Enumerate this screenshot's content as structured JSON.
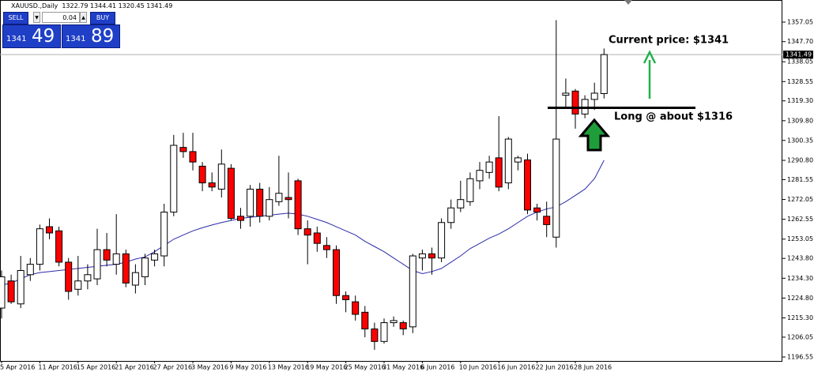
{
  "chart_data": {
    "type": "candlestick",
    "title": "XAUUSD.,Daily",
    "ohlc_label": "1322.79 1344.41 1320.45 1341.49",
    "categories": [
      "5 Apr 2016",
      null,
      null,
      null,
      "11 Apr 2016",
      null,
      null,
      null,
      "15 Apr 2016",
      null,
      null,
      null,
      "21 Apr 2016",
      null,
      null,
      null,
      "27 Apr 2016",
      null,
      null,
      null,
      "3 May 2016",
      null,
      null,
      null,
      "9 May 2016",
      null,
      null,
      null,
      "13 May 2016",
      null,
      null,
      null,
      "19 May 2016",
      null,
      null,
      null,
      "25 May 2016",
      null,
      null,
      null,
      "31 May 2016",
      null,
      null,
      null,
      "6 Jun 2016",
      null,
      null,
      null,
      "10 Jun 2016",
      null,
      null,
      null,
      "16 Jun 2016",
      null,
      null,
      null,
      "22 Jun 2016",
      null,
      null,
      null,
      "28 Jun 2016",
      null,
      null,
      null
    ],
    "open": [
      1220,
      1233,
      1222,
      1236,
      1241,
      1259,
      1257,
      1242,
      1229,
      1233,
      1234,
      1248,
      1241,
      1246,
      1231,
      1235,
      1243,
      1245,
      1266,
      1297,
      1295,
      1288,
      1280,
      1277,
      1287,
      1264,
      1264,
      1277,
      1264,
      1271,
      1273,
      1281,
      1258,
      1256,
      1250,
      1248,
      1226,
      1223,
      1218,
      1210,
      1204,
      1213,
      1213,
      1211,
      1244,
      1246,
      1244,
      1261,
      1268,
      1271,
      1281,
      1285,
      1292,
      1280,
      1290,
      1291,
      1268,
      1264,
      1254,
      1322,
      1324,
      1313,
      1320,
      1322.79
    ],
    "high": [
      1238,
      1236,
      1245,
      1244,
      1260,
      1263,
      1259,
      1244,
      1245,
      1241,
      1258,
      1256,
      1265,
      1248,
      1241,
      1246,
      1248,
      1270,
      1303,
      1304,
      1304,
      1290,
      1285,
      1296,
      1289,
      1268,
      1279,
      1280,
      1278,
      1293,
      1285,
      1282,
      1262,
      1259,
      1254,
      1250,
      1228,
      1226,
      1221,
      1213,
      1215,
      1216,
      1214,
      1246,
      1248,
      1249,
      1263,
      1272,
      1281,
      1285,
      1290,
      1293,
      1312,
      1302,
      1293,
      1294,
      1270,
      1271,
      1358,
      1330,
      1325,
      1322,
      1328,
      1344.41
    ],
    "low": [
      1215,
      1222,
      1220,
      1233,
      1238,
      1253,
      1240,
      1224,
      1226,
      1229,
      1231,
      1240,
      1236,
      1230,
      1227,
      1231,
      1240,
      1240,
      1264,
      1292,
      1286,
      1276,
      1276,
      1273,
      1262,
      1258,
      1259,
      1261,
      1262,
      1269,
      1263,
      1255,
      1241,
      1247,
      1244,
      1222,
      1218,
      1214,
      1206,
      1200,
      1203,
      1211,
      1207,
      1208,
      1238,
      1236,
      1242,
      1258,
      1266,
      1269,
      1277,
      1282,
      1276,
      1277,
      1286,
      1265,
      1262,
      1254,
      1249,
      1316,
      1306,
      1311,
      1315,
      1320.45
    ],
    "close": [
      1235,
      1223,
      1238,
      1241,
      1258,
      1256,
      1242,
      1228,
      1233,
      1236,
      1248,
      1243,
      1246,
      1232,
      1237,
      1244,
      1246,
      1266,
      1298,
      1295,
      1290,
      1280,
      1278,
      1289,
      1263,
      1262,
      1277,
      1264,
      1272,
      1275,
      1272,
      1258,
      1255,
      1251,
      1248,
      1226,
      1224,
      1217,
      1210,
      1204,
      1213,
      1214,
      1210,
      1245,
      1246,
      1244,
      1261,
      1268,
      1272,
      1282,
      1286,
      1290,
      1278,
      1301,
      1292,
      1267,
      1266,
      1260,
      1301,
      1323,
      1313,
      1320,
      1323,
      1341.49
    ],
    "up_color": "#ffffff",
    "down_color": "#ff0000",
    "moving_average": {
      "color": "#2b2ba8",
      "values": [
        1231,
        1232,
        1234,
        1236,
        1237,
        1237.5,
        1238,
        1238.5,
        1239,
        1239.5,
        1240,
        1240.5,
        1241,
        1242,
        1243.5,
        1244.5,
        1247,
        1250,
        1253,
        1255,
        1257,
        1258.5,
        1259.8,
        1261,
        1262,
        1263,
        1263.5,
        1264,
        1264.5,
        1265,
        1265.5,
        1265,
        1264,
        1262.5,
        1261,
        1259,
        1257,
        1255,
        1252,
        1249.5,
        1247,
        1244,
        1241,
        1238,
        1236.5,
        1237.5,
        1239,
        1242,
        1245,
        1248.5,
        1251,
        1253.5,
        1255.5,
        1258,
        1261,
        1264,
        1266,
        1267.5,
        1268.5,
        1271,
        1274,
        1277,
        1282,
        1290.8
      ]
    },
    "ylim": [
      1194.66,
      1367.65
    ],
    "yticks": [
      1357.05,
      {
        "value": 1347.7,
        "label": "1347.70"
      },
      1338.05,
      1328.55,
      {
        "value": 1319.3,
        "label": "1319.30"
      },
      {
        "value": 1309.8,
        "label": "1309.80"
      },
      1300.35,
      {
        "value": 1290.8,
        "label": "1290.80"
      },
      1281.55,
      1272.05,
      1262.55,
      1253.05,
      {
        "value": 1243.8,
        "label": "1243.80"
      },
      {
        "value": 1234.3,
        "label": "1234.30"
      },
      {
        "value": 1224.8,
        "label": "1224.80"
      },
      {
        "value": 1215.3,
        "label": "1215.30"
      },
      1206.05,
      1196.55
    ],
    "current_price": 1341.49,
    "entry_level": 1316,
    "annotations": [
      "Current price: $1341",
      "Long @ about $1316"
    ]
  },
  "trade_panel": {
    "sell": "SELL",
    "buy": "BUY",
    "lot": "0.04",
    "bid_big": "1341",
    "bid_small": "49",
    "ask_big": "1341",
    "ask_small": "89"
  }
}
